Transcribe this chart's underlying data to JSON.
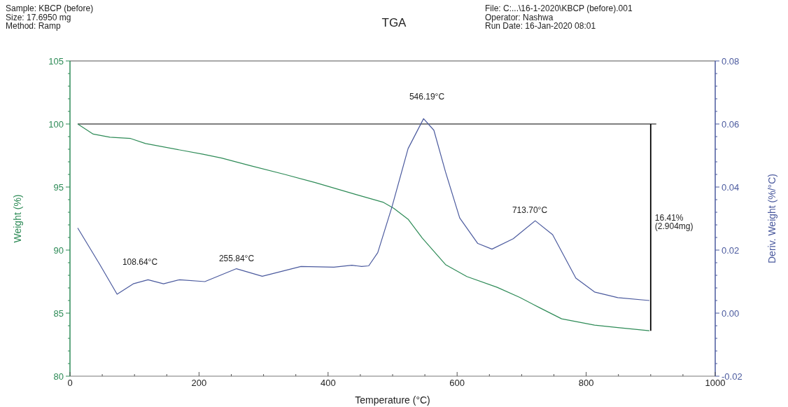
{
  "chart_data": {
    "type": "line",
    "title": "TGA",
    "xlabel": "Temperature (°C)",
    "ylabel": "Weight (%)",
    "y2label": "Deriv. Weight (%/°C)",
    "xlim": [
      0,
      1000
    ],
    "xticks": [
      0,
      200,
      400,
      600,
      800,
      1000
    ],
    "ylim": [
      80,
      105
    ],
    "yticks": [
      80,
      85,
      90,
      95,
      100,
      105
    ],
    "y2lim": [
      -0.02,
      0.08
    ],
    "y2ticks": [
      -0.02,
      {
        "value": 0,
        "label": "0.00"
      },
      0.02,
      0.04,
      0.06,
      0.08
    ],
    "grid": false,
    "marker": "none",
    "line_style": "solid",
    "ref_lines": [
      {
        "axis": "y",
        "value": 100,
        "color": "#000000"
      },
      {
        "axis": "x",
        "value": 900,
        "label": "16.41%\n(2.904mg)",
        "color": "#000000"
      }
    ],
    "series": [
      {
        "color": "#2e8b57",
        "x": [
          12,
          36,
          62,
          94,
          117,
          206,
          235,
          279,
          333,
          380,
          444,
          485,
          502,
          524,
          546,
          582,
          615,
          662,
          697,
          727,
          762,
          813,
          849,
          898
        ],
        "values": [
          100,
          99.2,
          98.95,
          98.85,
          98.45,
          97.6,
          97.3,
          96.7,
          96,
          95.35,
          94.4,
          93.8,
          93.3,
          92.45,
          90.95,
          88.85,
          87.9,
          87.05,
          86.25,
          85.45,
          84.55,
          84.05,
          83.85,
          83.6
        ]
      },
      {
        "color": "#4b5a9e",
        "axis": "y2",
        "x": [
          12,
          46,
          73,
          98,
          121,
          145,
          170,
          209,
          258,
          298,
          358,
          409,
          437,
          452,
          463,
          477,
          499,
          524,
          548,
          564,
          582,
          604,
          632,
          654,
          687,
          721,
          748,
          784,
          813,
          849,
          898
        ],
        "values": [
          0.027,
          0.0155,
          0.006,
          0.0093,
          0.0106,
          0.0093,
          0.0106,
          0.01,
          0.0141,
          0.0117,
          0.0148,
          0.0146,
          0.0152,
          0.0148,
          0.015,
          0.0192,
          0.0337,
          0.0522,
          0.0617,
          0.058,
          0.0448,
          0.0302,
          0.0221,
          0.0203,
          0.0236,
          0.0293,
          0.0249,
          0.0111,
          0.0067,
          0.0049,
          0.004
        ]
      }
    ],
    "annotations": [
      "Sample: KBCP (before)\nSize:  17.6950 mg\nMethod: Ramp",
      "File: C:...\\16-1-2020\\KBCP (before).001\nOperator: Nashwa\nRun Date: 16-Jan-2020 08:01",
      "108.64°C",
      "255.84°C",
      "546.19°C",
      "713.70°C"
    ]
  }
}
